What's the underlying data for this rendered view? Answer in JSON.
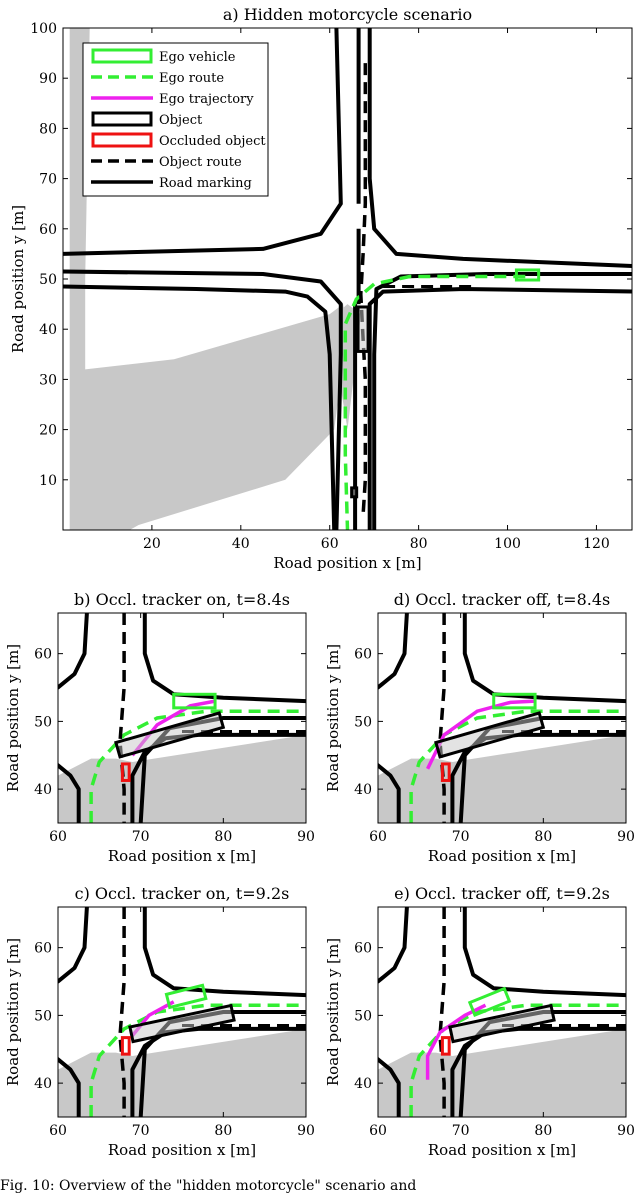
{
  "chart_data": [
    {
      "id": "a",
      "type": "scatter",
      "title": "a) Hidden motorcycle scenario",
      "xlabel": "Road position x [m]",
      "ylabel": "Road position y [m]",
      "xlim": [
        0,
        128
      ],
      "ylim": [
        0,
        100
      ],
      "xticks": [
        20,
        40,
        60,
        80,
        100,
        120
      ],
      "yticks": [
        10,
        20,
        30,
        40,
        50,
        60,
        70,
        80,
        90,
        100
      ],
      "legend": {
        "position": "top-left",
        "entries": [
          {
            "label": "Ego vehicle",
            "color": "#33ee33",
            "style": "box"
          },
          {
            "label": "Ego route",
            "color": "#33ee33",
            "style": "dashed"
          },
          {
            "label": "Ego trajectory",
            "color": "#ee22ee",
            "style": "solid"
          },
          {
            "label": "Object",
            "color": "#000000",
            "style": "box"
          },
          {
            "label": "Occluded object",
            "color": "#ee1111",
            "style": "box"
          },
          {
            "label": "Object route",
            "color": "#000000",
            "style": "dashed"
          },
          {
            "label": "Road marking",
            "color": "#000000",
            "style": "solid"
          }
        ]
      },
      "road_markings": [
        [
          [
            61.5,
            0
          ],
          [
            62.5,
            35
          ],
          [
            62.5,
            45
          ],
          [
            58,
            49.5
          ],
          [
            45,
            51
          ],
          [
            0,
            51.5
          ]
        ],
        [
          [
            69,
            0
          ],
          [
            69,
            35
          ],
          [
            69,
            45
          ],
          [
            72,
            47.5
          ],
          [
            90,
            48
          ],
          [
            130,
            47.5
          ]
        ],
        [
          [
            0,
            55
          ],
          [
            45,
            56
          ],
          [
            58,
            59
          ],
          [
            62.5,
            65
          ],
          [
            61.5,
            100
          ]
        ],
        [
          [
            130,
            52.5
          ],
          [
            90,
            54
          ],
          [
            75,
            55
          ],
          [
            70,
            60
          ],
          [
            69,
            70
          ],
          [
            69,
            100
          ]
        ],
        [
          [
            0,
            48.5
          ],
          [
            30,
            48
          ],
          [
            50,
            47.5
          ],
          [
            55,
            46.5
          ],
          [
            59,
            43.5
          ],
          [
            60,
            35
          ],
          [
            61,
            0
          ]
        ],
        [
          [
            130,
            51
          ],
          [
            95,
            51
          ],
          [
            76,
            50.5
          ],
          [
            70.5,
            48
          ],
          [
            70,
            35
          ],
          [
            70,
            0
          ]
        ],
        [
          [
            65.7,
            0
          ],
          [
            65.7,
            35
          ],
          [
            65.7,
            45
          ]
        ],
        [
          [
            66.5,
            100
          ],
          [
            66.5,
            65
          ]
        ],
        [
          [
            66.5,
            45
          ],
          [
            66.5,
            60
          ]
        ]
      ],
      "ego_route": [
        [
          104,
          50.5
        ],
        [
          90,
          50.5
        ],
        [
          78,
          50.5
        ],
        [
          70,
          49
        ],
        [
          66,
          46
        ],
        [
          63.5,
          41
        ],
        [
          63.5,
          30
        ],
        [
          63.5,
          15
        ],
        [
          64,
          0
        ]
      ],
      "object_route": [
        [
          68,
          93
        ],
        [
          68,
          65
        ],
        [
          67.5,
          55
        ],
        [
          67,
          47
        ],
        [
          67.5,
          38
        ],
        [
          68,
          30
        ],
        [
          68,
          10
        ],
        [
          67.5,
          3
        ]
      ],
      "object_route_2": [
        [
          72,
          48.5
        ],
        [
          92,
          48.5
        ]
      ],
      "occlusion_polygons": [
        [
          [
            1.5,
            0
          ],
          [
            1.5,
            100
          ],
          [
            6,
            100
          ],
          [
            5,
            50
          ],
          [
            5,
            32
          ],
          [
            25,
            34
          ],
          [
            60,
            43
          ],
          [
            63,
            45
          ],
          [
            64,
            40
          ],
          [
            61,
            20
          ],
          [
            50,
            10
          ],
          [
            17,
            1
          ],
          [
            15,
            0
          ]
        ],
        [
          [
            60,
            42
          ],
          [
            64,
            45
          ],
          [
            67,
            43
          ],
          [
            66,
            35
          ],
          [
            64,
            20
          ]
        ]
      ],
      "ego_vehicle": {
        "center": [
          104.5,
          50.8
        ],
        "length": 5,
        "width": 2,
        "heading_deg": 0
      },
      "objects": [
        {
          "center": [
            67.5,
            40
          ],
          "length": 10,
          "width": 2,
          "heading_deg": 90
        },
        {
          "center": [
            65.5,
            7.5
          ],
          "length": 2,
          "width": 1,
          "heading_deg": 90
        }
      ]
    },
    {
      "id": "b",
      "type": "scatter",
      "title": "b) Occl. tracker on, t=8.4s",
      "xlabel": "Road position x [m]",
      "ylabel": "Road position y [m]",
      "xlim": [
        60,
        90
      ],
      "ylim": [
        35,
        66
      ],
      "xticks": [
        60,
        70,
        80,
        90
      ],
      "yticks": [
        40,
        50,
        60
      ],
      "ego_trajectory": [
        [
          69,
          45
        ],
        [
          72,
          49.5
        ],
        [
          76,
          52.3
        ],
        [
          79,
          53
        ]
      ],
      "ego_vehicle": {
        "center": [
          76.5,
          53
        ],
        "length": 5,
        "width": 2,
        "heading_deg": 0
      },
      "object": {
        "center": [
          73.5,
          48
        ],
        "length": 13,
        "width": 2.2,
        "heading_deg": 16
      },
      "occluded_object": {
        "center": [
          68.2,
          42.5
        ],
        "length": 2,
        "width": 1,
        "heading_deg": 90
      }
    },
    {
      "id": "d",
      "type": "scatter",
      "title": "d) Occl. tracker off, t=8.4s",
      "xlabel": "Road position x [m]",
      "ylabel": "Road position y [m]",
      "xlim": [
        60,
        90
      ],
      "ylim": [
        35,
        66
      ],
      "xticks": [
        60,
        70,
        80,
        90
      ],
      "yticks": [
        40,
        50,
        60
      ],
      "ego_trajectory": [
        [
          66,
          43
        ],
        [
          68,
          48
        ],
        [
          72,
          51.5
        ],
        [
          76,
          52.8
        ],
        [
          79,
          53
        ]
      ],
      "ego_vehicle": {
        "center": [
          76.5,
          53
        ],
        "length": 5,
        "width": 2,
        "heading_deg": 0
      },
      "object": {
        "center": [
          73.5,
          48
        ],
        "length": 13,
        "width": 2.2,
        "heading_deg": 16
      },
      "occluded_object": {
        "center": [
          68.2,
          42.5
        ],
        "length": 2,
        "width": 1,
        "heading_deg": 90
      }
    },
    {
      "id": "c",
      "type": "scatter",
      "title": "c) Occl. tracker on, t=9.2s",
      "xlabel": "Road position x [m]",
      "ylabel": "Road position y [m]",
      "xlim": [
        60,
        90
      ],
      "ylim": [
        35,
        66
      ],
      "xticks": [
        60,
        70,
        80,
        90
      ],
      "yticks": [
        40,
        50,
        60
      ],
      "ego_trajectory": [
        [
          69,
          47
        ],
        [
          71,
          50
        ],
        [
          74,
          52
        ]
      ],
      "ego_vehicle": {
        "center": [
          75.5,
          52.8
        ],
        "length": 4.5,
        "width": 2,
        "heading_deg": 14
      },
      "object": {
        "center": [
          75,
          48.8
        ],
        "length": 12.5,
        "width": 2.2,
        "heading_deg": 12
      },
      "occluded_object": {
        "center": [
          68.2,
          45.5
        ],
        "length": 2,
        "width": 1,
        "heading_deg": 90
      }
    },
    {
      "id": "e",
      "type": "scatter",
      "title": "e) Occl. tracker off, t=9.2s",
      "xlabel": "Road position x [m]",
      "ylabel": "Road position y [m]",
      "xlim": [
        60,
        90
      ],
      "ylim": [
        35,
        66
      ],
      "xticks": [
        60,
        70,
        80,
        90
      ],
      "yticks": [
        40,
        50,
        60
      ],
      "ego_trajectory": [
        [
          66,
          40.5
        ],
        [
          66,
          44
        ],
        [
          67.5,
          47.5
        ],
        [
          70.5,
          50
        ],
        [
          73,
          51.5
        ]
      ],
      "ego_vehicle": {
        "center": [
          73.5,
          52
        ],
        "length": 4.5,
        "width": 2,
        "heading_deg": 22
      },
      "object": {
        "center": [
          75,
          48.8
        ],
        "length": 12.5,
        "width": 2.2,
        "heading_deg": 12
      },
      "occluded_object": {
        "center": [
          68.2,
          45.5
        ],
        "length": 2,
        "width": 1,
        "heading_deg": 90
      }
    }
  ],
  "zoom_shared": {
    "occlusion_polygon": [
      [
        60,
        35
      ],
      [
        60,
        42
      ],
      [
        64,
        44.5
      ],
      [
        67,
        44.5
      ],
      [
        69,
        44
      ],
      [
        90,
        48
      ],
      [
        90,
        35
      ]
    ],
    "road_markings": [
      [
        [
          57,
          46
        ],
        [
          59.5,
          44
        ],
        [
          61.5,
          42
        ],
        [
          62.5,
          40
        ],
        [
          62.5,
          35
        ]
      ],
      [
        [
          69,
          35
        ],
        [
          69,
          42
        ],
        [
          70.5,
          45.5
        ],
        [
          73,
          47.5
        ],
        [
          77,
          48
        ],
        [
          90,
          48
        ]
      ],
      [
        [
          63.5,
          66
        ],
        [
          63.2,
          60
        ],
        [
          62,
          57
        ],
        [
          60,
          55
        ],
        [
          57,
          54
        ]
      ],
      [
        [
          70.5,
          66
        ],
        [
          70.5,
          60
        ],
        [
          71.5,
          56
        ],
        [
          74,
          54
        ],
        [
          80,
          53.5
        ],
        [
          90,
          53
        ]
      ],
      [
        [
          70,
          35
        ],
        [
          70.5,
          45
        ],
        [
          73.5,
          49
        ],
        [
          80,
          50.5
        ],
        [
          90,
          50.5
        ]
      ]
    ],
    "object_route": [
      [
        68,
        66
      ],
      [
        68,
        55
      ],
      [
        67.5,
        47
      ],
      [
        68,
        40
      ],
      [
        68,
        35
      ]
    ],
    "object_route_2": [
      [
        75,
        48.5
      ],
      [
        90,
        48.5
      ]
    ],
    "ego_route": [
      [
        64,
        35
      ],
      [
        64,
        40
      ],
      [
        65,
        44
      ],
      [
        68,
        48
      ],
      [
        72,
        50.5
      ],
      [
        78,
        51.5
      ],
      [
        90,
        51.5
      ]
    ]
  },
  "caption": "Fig. 10: Overview of the \"hidden motorcycle\" scenario and"
}
